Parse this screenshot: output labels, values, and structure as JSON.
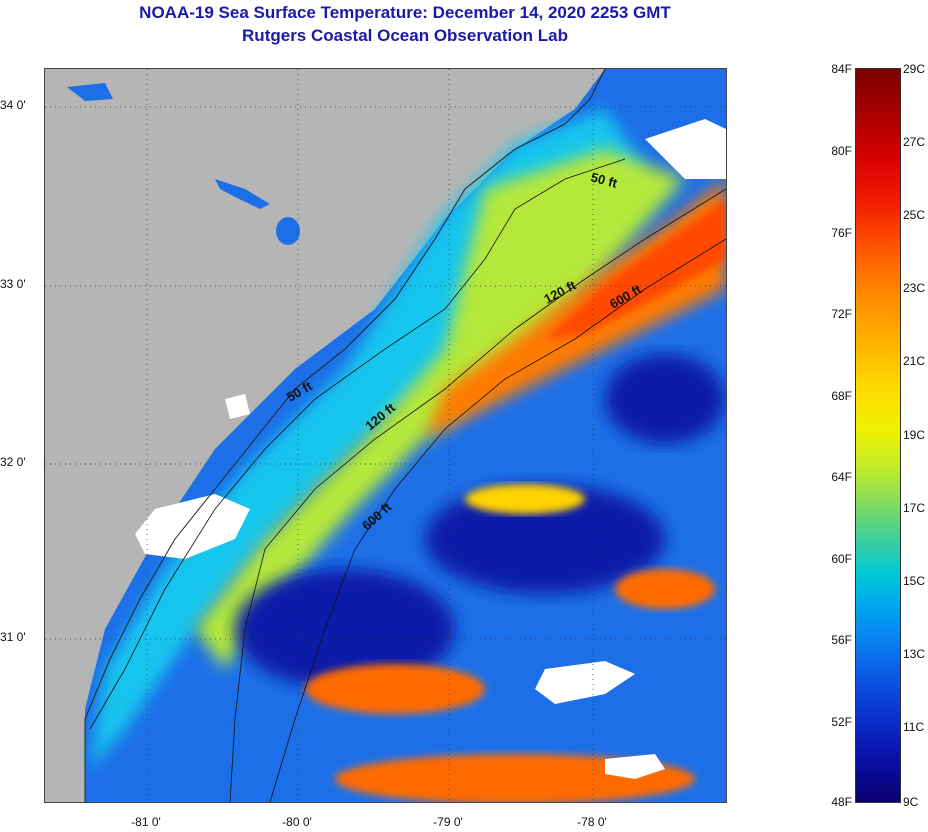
{
  "title": {
    "line1": "NOAA-19 Sea Surface Temperature:  December 14, 2020 2253 GMT",
    "line2": "Rutgers Coastal Ocean Observation Lab"
  },
  "map": {
    "lat_labels": [
      "34 0'",
      "33 0'",
      "32 0'",
      "31 0'"
    ],
    "lon_labels": [
      "-81 0'",
      "-80 0'",
      "-79 0'",
      "-78 0'"
    ],
    "contour_labels": [
      "50 ft",
      "120 ft",
      "600 ft",
      "50 ft",
      "120 ft",
      "600 ft"
    ],
    "colors": {
      "land": "#b5b5b5",
      "cloud": "#ffffff",
      "cold": "#0a1aa8",
      "warm": "#ff7000"
    }
  },
  "colorbar": {
    "fahrenheit": [
      "84F",
      "80F",
      "76F",
      "72F",
      "68F",
      "64F",
      "60F",
      "56F",
      "52F",
      "48F"
    ],
    "celsius": [
      "29C",
      "27C",
      "25C",
      "23C",
      "21C",
      "19C",
      "17C",
      "15C",
      "13C",
      "11C",
      "9C"
    ]
  }
}
